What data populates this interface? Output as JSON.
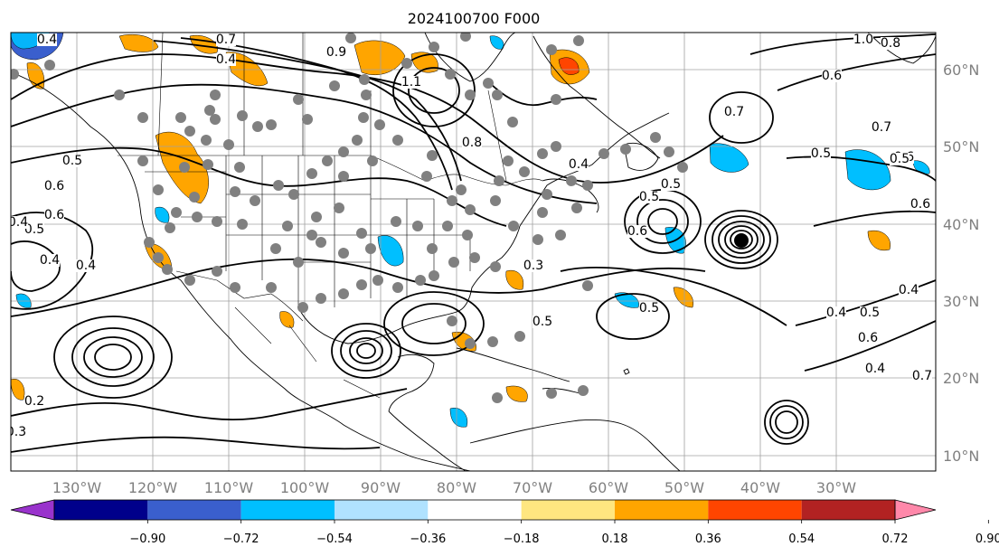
{
  "title": "2024100700 F000",
  "longitude_labels": [
    "130°W",
    "120°W",
    "110°W",
    "100°W",
    "90°W",
    "80°W",
    "70°W",
    "60°W",
    "50°W",
    "40°W",
    "30°W"
  ],
  "latitude_labels": [
    "60°N",
    "50°N",
    "40°N",
    "30°N",
    "20°N",
    "10°N"
  ],
  "colorbar": {
    "tick_labels": [
      "−0.90",
      "−0.72",
      "−0.54",
      "−0.36",
      "−0.18",
      "0.18",
      "0.36",
      "0.54",
      "0.72",
      "0.90"
    ],
    "colors": [
      "#9933cc",
      "#00008b",
      "#3a5fcd",
      "#00bfff",
      "#b0e2ff",
      "#ffffff",
      "#ffe680",
      "#ffa500",
      "#ff4500",
      "#b22222",
      "#ff88aa"
    ]
  },
  "contour_labels": [
    "0.4",
    "0.7",
    "0.4",
    "0.9",
    "1.1",
    "1.0",
    "0.8",
    "0.8",
    "0.6",
    "0.5",
    "0.7",
    "0.7",
    "0.6",
    "0.5",
    "0.4",
    "0.6",
    "0.5",
    "0.4",
    "0.5",
    "0.6",
    "0.3",
    "0.4",
    "0.4",
    "0.5",
    "0.2",
    "0.3",
    "0.6",
    "0.5",
    "0.4",
    "0.5",
    "0.6",
    "0.4",
    "0.7",
    "0.6",
    "0.5",
    "0.5",
    "0.4"
  ],
  "map_style": {
    "shade_positive": "#ffa500",
    "shade_positive_strong": "#ff4500",
    "shade_negative": "#00bfff",
    "marker_color": "#808080",
    "contour_color": "#000000",
    "grid_color": "#a0a0a0"
  }
}
